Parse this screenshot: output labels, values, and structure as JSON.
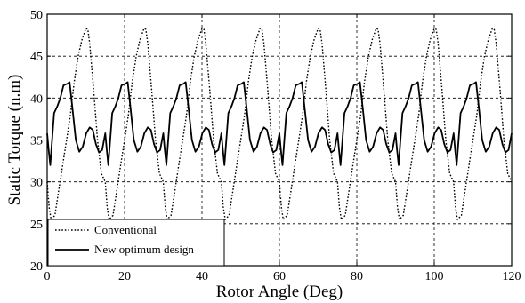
{
  "chart_data": {
    "type": "line",
    "title": "",
    "xlabel": "Rotor Angle (Deg)",
    "ylabel": "Static Torque (n.m)",
    "xlim": [
      0,
      120
    ],
    "ylim": [
      20,
      50
    ],
    "x_ticks": [
      0,
      20,
      40,
      60,
      80,
      100,
      120
    ],
    "y_ticks": [
      20,
      25,
      30,
      35,
      40,
      45,
      50
    ],
    "grid": true,
    "legend_position": "bottom-left",
    "period_deg": 15,
    "series": [
      {
        "name": "Conventional",
        "style": "dotted",
        "period_x": [
          0,
          0.5,
          1,
          2,
          3,
          4,
          5,
          6,
          7,
          8,
          9,
          10,
          10.5,
          11,
          12,
          13,
          14,
          15
        ],
        "period_y": [
          30,
          27,
          25.5,
          26,
          29,
          32,
          35,
          38,
          42,
          45,
          47,
          48.3,
          48.2,
          46.5,
          41,
          35,
          31,
          30
        ]
      },
      {
        "name": "New optimum design",
        "style": "solid",
        "period_x": [
          0,
          0.4,
          0.8,
          1.2,
          1.8,
          2.6,
          3.4,
          4.2,
          4.6,
          5.2,
          5.8,
          6.6,
          7.4,
          8.3,
          9.2,
          10.1,
          11.0,
          11.8,
          12.6,
          13.4,
          14.2,
          15.0
        ],
        "period_y": [
          35.8,
          33.8,
          32.0,
          34.5,
          38.2,
          39.0,
          40.0,
          41.5,
          41.6,
          41.7,
          41.9,
          38.5,
          35.0,
          33.6,
          34.2,
          35.8,
          36.5,
          36.2,
          34.5,
          33.5,
          33.8,
          35.8
        ]
      }
    ]
  }
}
